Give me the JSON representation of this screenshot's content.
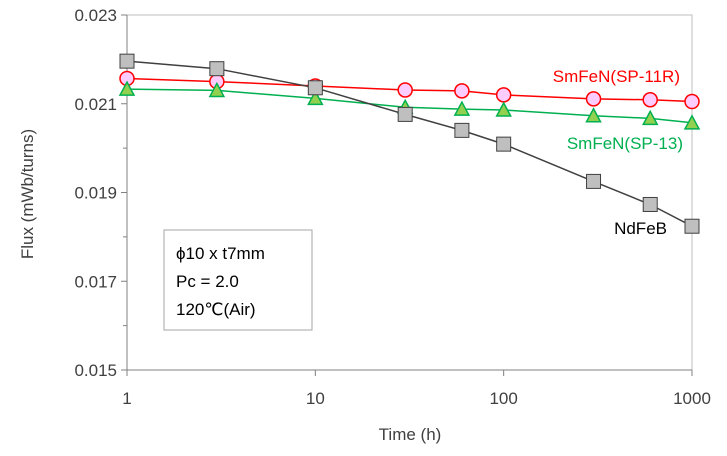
{
  "chart_data": {
    "type": "line",
    "xlabel": "Time (h)",
    "ylabel": "Flux (mWb/turns)",
    "x_scale": "log",
    "xlim": [
      1,
      1000
    ],
    "ylim": [
      0.015,
      0.023
    ],
    "x_ticks": [
      "1",
      "10",
      "100",
      "1000"
    ],
    "y_ticks": [
      "0.015",
      "0.017",
      "0.019",
      "0.021",
      "0.023"
    ],
    "grid": false,
    "annotation_lines": [
      "ϕ10 x t7mm",
      "Pc = 2.0",
      "120℃(Air)"
    ],
    "series": [
      {
        "name": "SmFeN(SP-11R)",
        "color": "#ff0000",
        "marker": "circle",
        "marker_fill": "#ffccff",
        "x": [
          1,
          3,
          10,
          30,
          60,
          100,
          300,
          600,
          1000
        ],
        "y": [
          0.02157,
          0.0215,
          0.0214,
          0.02131,
          0.02129,
          0.0212,
          0.02111,
          0.02109,
          0.02105
        ]
      },
      {
        "name": "SmFeN(SP-13)",
        "color": "#00b050",
        "marker": "triangle",
        "marker_fill": "#92d050",
        "x": [
          1,
          3,
          10,
          30,
          60,
          100,
          300,
          600,
          1000
        ],
        "y": [
          0.02133,
          0.0213,
          0.02112,
          0.02092,
          0.02088,
          0.02086,
          0.02073,
          0.02067,
          0.02057
        ]
      },
      {
        "name": "NdFeB",
        "color": "#404040",
        "marker": "square",
        "marker_fill": "#bfbfbf",
        "x": [
          1,
          3,
          10,
          30,
          60,
          100,
          300,
          600,
          1000
        ],
        "y": [
          0.02196,
          0.02179,
          0.02136,
          0.02076,
          0.0204,
          0.02009,
          0.01925,
          0.01873,
          0.01824
        ]
      }
    ]
  }
}
